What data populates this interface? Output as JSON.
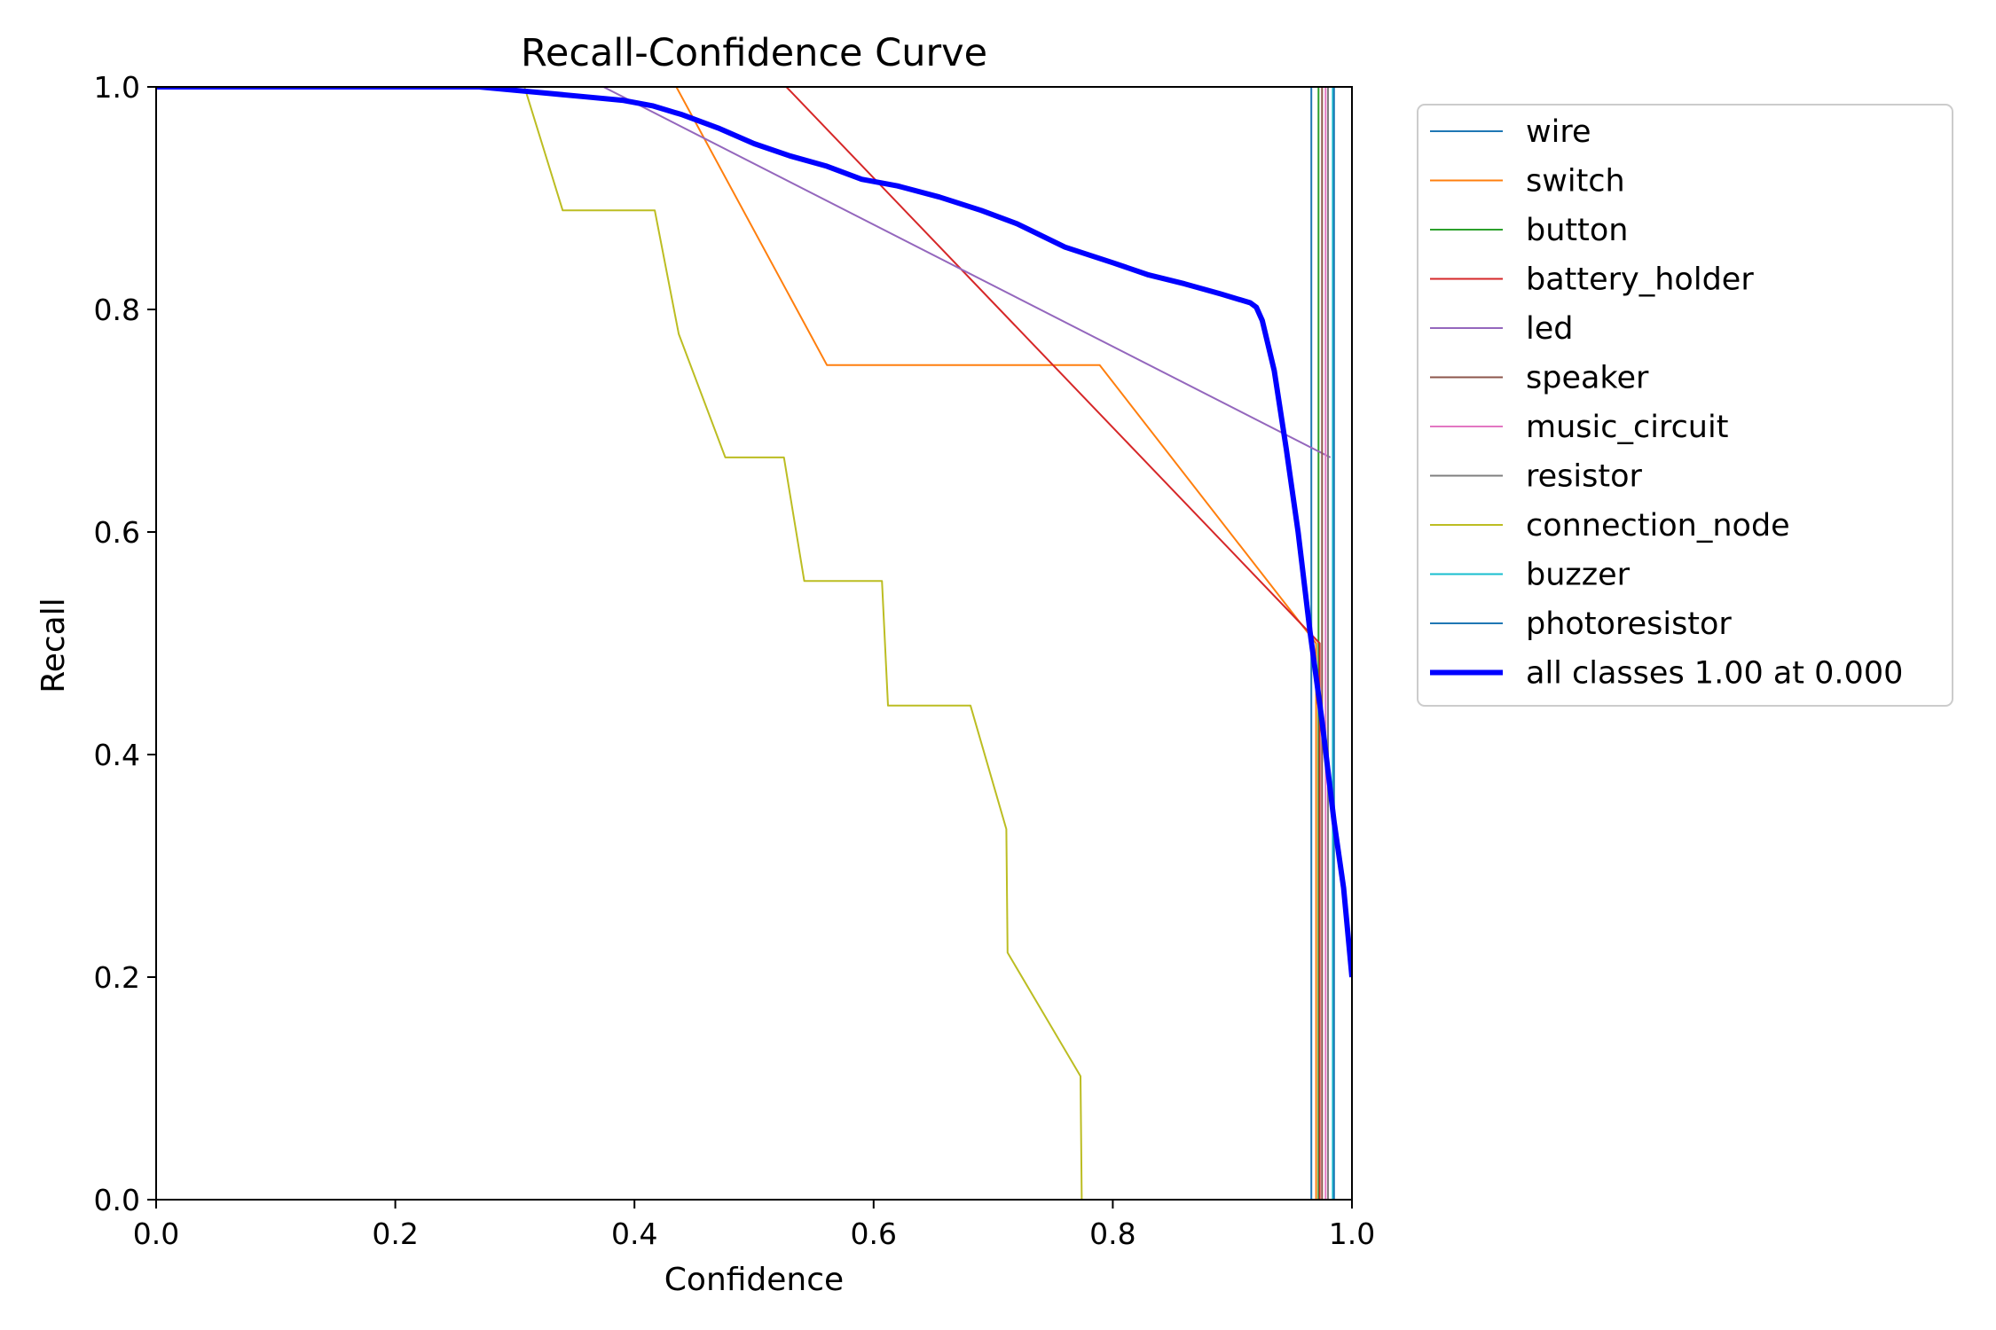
{
  "chart_data": {
    "type": "line",
    "title": "Recall-Confidence Curve",
    "xlabel": "Confidence",
    "ylabel": "Recall",
    "xlim": [
      0.0,
      1.0
    ],
    "ylim": [
      0.0,
      1.0
    ],
    "x_ticks": [
      "0.0",
      "0.2",
      "0.4",
      "0.6",
      "0.8",
      "1.0"
    ],
    "y_ticks": [
      "0.0",
      "0.2",
      "0.4",
      "0.6",
      "0.8",
      "1.0"
    ],
    "grid": false,
    "legend_position": "outside-right",
    "series": [
      {
        "name": "wire",
        "color": "#1f77b4",
        "width": 2,
        "points": [
          [
            0,
            1
          ],
          [
            0.966,
            1
          ],
          [
            0.966,
            0
          ]
        ]
      },
      {
        "name": "switch",
        "color": "#ff7f0e",
        "width": 2,
        "points": [
          [
            0,
            1
          ],
          [
            0.435,
            1
          ],
          [
            0.561,
            0.75
          ],
          [
            0.789,
            0.75
          ],
          [
            0.97,
            0.5
          ],
          [
            0.97,
            0
          ]
        ]
      },
      {
        "name": "button",
        "color": "#2ca02c",
        "width": 2,
        "points": [
          [
            0,
            1
          ],
          [
            0.972,
            1
          ],
          [
            0.972,
            0
          ]
        ]
      },
      {
        "name": "battery_holder",
        "color": "#d62728",
        "width": 2,
        "points": [
          [
            0,
            1
          ],
          [
            0.527,
            1
          ],
          [
            0.973,
            0.5
          ],
          [
            0.973,
            0
          ]
        ]
      },
      {
        "name": "led",
        "color": "#9467bd",
        "width": 2,
        "points": [
          [
            0,
            1
          ],
          [
            0.374,
            1
          ],
          [
            0.982,
            0.667
          ]
        ]
      },
      {
        "name": "speaker",
        "color": "#8c564b",
        "width": 2,
        "points": [
          [
            0,
            1
          ],
          [
            0.975,
            1
          ],
          [
            0.975,
            0
          ]
        ]
      },
      {
        "name": "music_circuit",
        "color": "#e377c2",
        "width": 2,
        "points": [
          [
            0,
            1
          ],
          [
            0.978,
            1
          ],
          [
            0.978,
            0
          ]
        ]
      },
      {
        "name": "resistor",
        "color": "#7f7f7f",
        "width": 2,
        "points": [
          [
            0,
            1
          ],
          [
            0.98,
            1
          ],
          [
            0.98,
            0
          ]
        ]
      },
      {
        "name": "connection_node",
        "color": "#bcbd22",
        "width": 2,
        "points": [
          [
            0,
            1
          ],
          [
            0.308,
            1
          ],
          [
            0.34,
            0.889
          ],
          [
            0.417,
            0.889
          ],
          [
            0.437,
            0.778
          ],
          [
            0.476,
            0.667
          ],
          [
            0.525,
            0.667
          ],
          [
            0.542,
            0.556
          ],
          [
            0.607,
            0.556
          ],
          [
            0.612,
            0.444
          ],
          [
            0.681,
            0.444
          ],
          [
            0.711,
            0.333
          ],
          [
            0.712,
            0.222
          ],
          [
            0.773,
            0.111
          ],
          [
            0.774,
            0
          ],
          [
            0.97,
            0
          ]
        ]
      },
      {
        "name": "buzzer",
        "color": "#17becf",
        "width": 2,
        "points": [
          [
            0,
            1
          ],
          [
            0.984,
            1
          ],
          [
            0.984,
            0
          ]
        ]
      },
      {
        "name": "photoresistor",
        "color": "#1f77b4",
        "width": 2,
        "points": [
          [
            0,
            1
          ],
          [
            0.985,
            1
          ],
          [
            0.985,
            0
          ]
        ]
      },
      {
        "name": "all classes 1.00 at 0.000",
        "color": "#0000ff",
        "width": 6,
        "points": [
          [
            0,
            1
          ],
          [
            0.27,
            1
          ],
          [
            0.3,
            0.997
          ],
          [
            0.33,
            0.994
          ],
          [
            0.36,
            0.991
          ],
          [
            0.39,
            0.988
          ],
          [
            0.415,
            0.983
          ],
          [
            0.44,
            0.975
          ],
          [
            0.47,
            0.963
          ],
          [
            0.5,
            0.949
          ],
          [
            0.53,
            0.938
          ],
          [
            0.56,
            0.929
          ],
          [
            0.59,
            0.917
          ],
          [
            0.62,
            0.911
          ],
          [
            0.655,
            0.901
          ],
          [
            0.69,
            0.889
          ],
          [
            0.72,
            0.877
          ],
          [
            0.76,
            0.856
          ],
          [
            0.8,
            0.842
          ],
          [
            0.83,
            0.831
          ],
          [
            0.86,
            0.823
          ],
          [
            0.89,
            0.814
          ],
          [
            0.915,
            0.806
          ],
          [
            0.92,
            0.802
          ],
          [
            0.925,
            0.79
          ],
          [
            0.935,
            0.745
          ],
          [
            0.945,
            0.675
          ],
          [
            0.955,
            0.6
          ],
          [
            0.965,
            0.51
          ],
          [
            0.975,
            0.43
          ],
          [
            0.985,
            0.34
          ],
          [
            0.993,
            0.28
          ],
          [
            1.0,
            0.2
          ]
        ]
      }
    ]
  }
}
